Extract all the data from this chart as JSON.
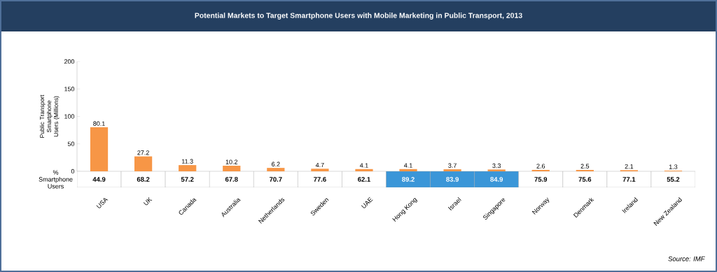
{
  "chart_data": [
    {
      "type": "bar",
      "title": "Potential Markets to Target Smartphone Users with Mobile Marketing in Public Transport, 2013",
      "ylabel": "Public Transport Smartphone Users (Millions)",
      "categories": [
        null,
        null,
        null,
        null,
        null,
        null,
        null,
        null,
        null,
        null,
        null,
        null,
        null,
        null
      ],
      "values": [
        80.1,
        27.2,
        11.3,
        10.2,
        6.2,
        4.7,
        4.1,
        4.1,
        3.7,
        3.3,
        2.6,
        2.5,
        2.1,
        1.3
      ],
      "color": "#f79646",
      "ylim": [
        0,
        200
      ],
      "yticks": [
        0,
        50,
        100,
        150,
        200
      ],
      "data_labels": true,
      "tick_labels": "y"
    },
    {
      "type": "heatmap",
      "categories": [
        "USA",
        "UK",
        "Canada",
        "Australia",
        "Netherlands",
        "Sweden",
        "UAE",
        "Hong Kong",
        "Israel",
        "Singapore",
        "Norway",
        "Denmark",
        "Ireland",
        "New Zealand"
      ],
      "y_categories": [
        "% Smartphone Users"
      ],
      "cells": [
        [
          44.9,
          68.2,
          57.2,
          67.8,
          70.7,
          77.6,
          62.1,
          89.2,
          83.9,
          84.9,
          75.9,
          75.6,
          77.1,
          55.2
        ]
      ],
      "colors": [
        "#ffffff",
        "#ffffff",
        "#ffffff",
        "#ffffff",
        "#ffffff",
        "#ffffff",
        "#ffffff",
        "#3a96d8",
        "#3a96d8",
        "#3a96d8",
        "#ffffff",
        "#ffffff",
        "#ffffff",
        "#ffffff"
      ],
      "data_labels": true,
      "annotations": [
        "Source: IMF"
      ]
    }
  ]
}
